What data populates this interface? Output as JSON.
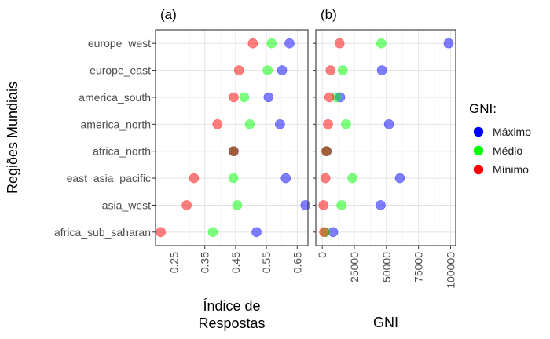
{
  "y_axis_title": "Regiões Mundiais",
  "legend": {
    "title": "GNI:",
    "items": [
      {
        "label": "Máximo",
        "color": "#0000FF"
      },
      {
        "label": "Médio",
        "color": "#00FF00"
      },
      {
        "label": "Mínimo",
        "color": "#FF0000"
      }
    ]
  },
  "chart_data": [
    {
      "type": "scatter",
      "panel_label": "(a)",
      "xlabel_lines": [
        "Índice de",
        "Respostas"
      ],
      "ylabel": "Regiões Mundiais",
      "categories": [
        "europe_west",
        "europe_east",
        "america_south",
        "america_north",
        "africa_north",
        "east_asia_pacific",
        "asia_west",
        "africa_sub_saharan"
      ],
      "xlim": [
        0.19,
        0.685
      ],
      "xticks": [
        0.25,
        0.35,
        0.45,
        0.55,
        0.65
      ],
      "xtick_labels": [
        "0.25",
        "0.35",
        "0.45",
        "0.55",
        "0.65"
      ],
      "grid": true,
      "series": [
        {
          "name": "Máximo",
          "color": "#0000FF",
          "values": [
            0.625,
            0.601,
            0.557,
            0.594,
            0.444,
            0.613,
            0.677,
            0.518
          ]
        },
        {
          "name": "Médio",
          "color": "#00FF00",
          "values": [
            0.567,
            0.554,
            0.478,
            0.496,
            0.443,
            0.443,
            0.455,
            0.376
          ]
        },
        {
          "name": "Mínimo",
          "color": "#FF0000",
          "values": [
            0.506,
            0.461,
            0.444,
            0.391,
            0.443,
            0.315,
            0.291,
            0.207
          ]
        }
      ]
    },
    {
      "type": "scatter",
      "panel_label": "(b)",
      "xlabel_lines": [
        "GNI"
      ],
      "categories": [
        "europe_west",
        "europe_east",
        "america_south",
        "america_north",
        "africa_north",
        "east_asia_pacific",
        "asia_west",
        "africa_sub_saharan"
      ],
      "xlim": [
        -5000,
        104000
      ],
      "xticks": [
        0,
        25000,
        50000,
        75000,
        100000
      ],
      "xtick_labels": [
        "0",
        "25000",
        "50000",
        "75000",
        "100000"
      ],
      "grid": true,
      "series": [
        {
          "name": "Máximo",
          "color": "#0000FF",
          "values": [
            98500,
            46500,
            14000,
            52000,
            3500,
            60500,
            45500,
            8500
          ]
        },
        {
          "name": "Médio",
          "color": "#00FF00",
          "values": [
            46000,
            16000,
            11000,
            18500,
            3300,
            23500,
            15000,
            2300
          ]
        },
        {
          "name": "Mínimo",
          "color": "#FF0000",
          "values": [
            13500,
            6500,
            5500,
            4500,
            3200,
            2500,
            1000,
            1500
          ]
        }
      ]
    }
  ]
}
